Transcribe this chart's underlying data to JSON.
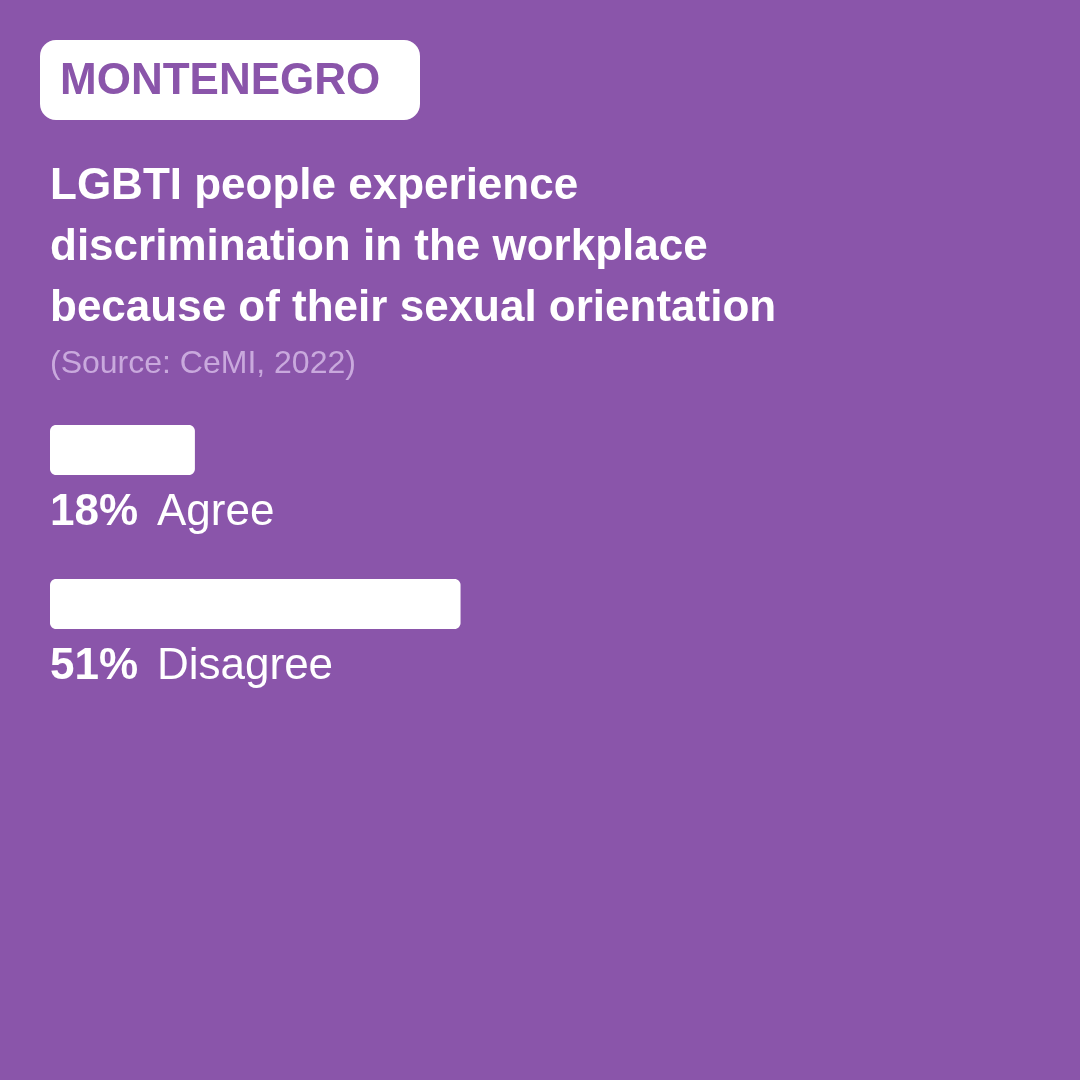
{
  "chart_data": {
    "type": "bar",
    "orientation": "horizontal",
    "title": "MONTENEGRO",
    "subtitle": "LGBTI people experience discrimination in the workplace because of their sexual orientation",
    "annotations": [
      "(Source: CeMI, 2022)"
    ],
    "categories": [
      "Agree",
      "Disagree"
    ],
    "values": [
      18,
      51
    ],
    "value_labels": [
      "18%",
      "51%"
    ],
    "color": "#ffffff"
  }
}
